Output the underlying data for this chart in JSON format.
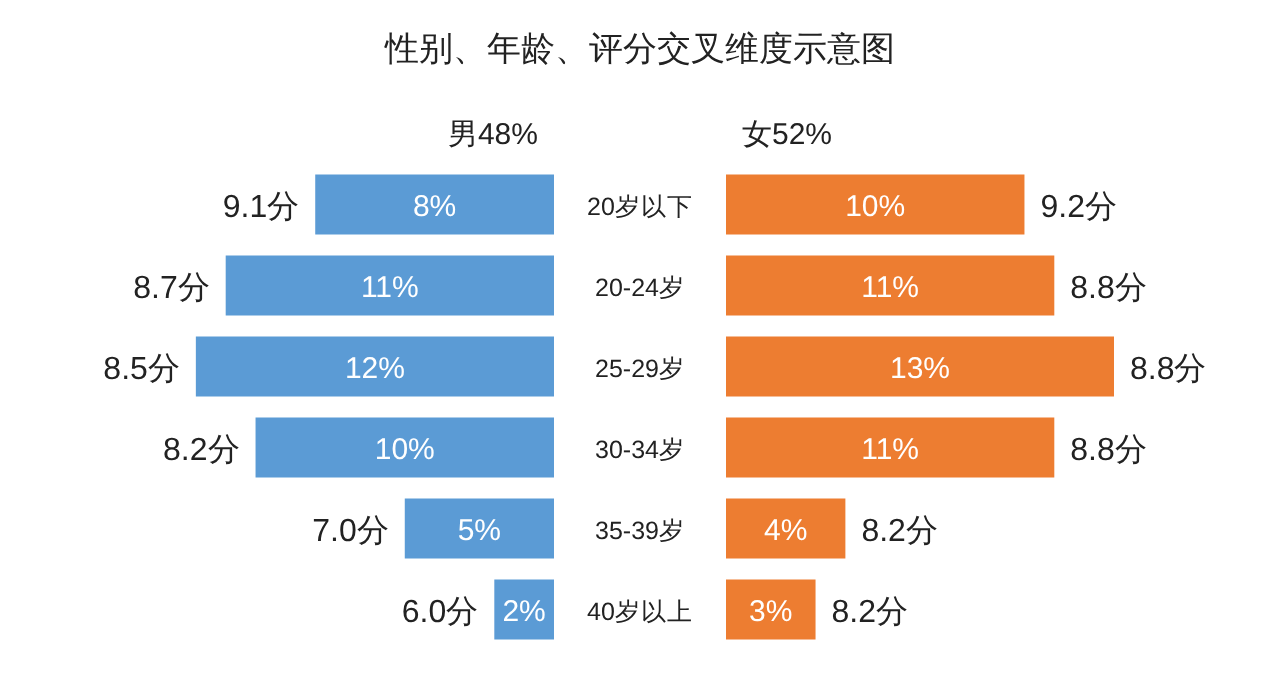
{
  "chart_data": [
    {
      "type": "bar",
      "orientation": "horizontal",
      "title": "性别、年龄、评分交叉维度示意图",
      "categories": [
        "20岁以下",
        "20-24岁",
        "25-29岁",
        "30-34岁",
        "35-39岁",
        "40岁以上"
      ],
      "tick_labels": false,
      "series": [
        {
          "name": "男48%",
          "color": "#5b9bd5",
          "values": [
            8,
            11,
            12,
            10,
            5,
            2
          ],
          "value_labels": [
            "8%",
            "11%",
            "12%",
            "10%",
            "5%",
            "2%"
          ]
        }
      ],
      "annotations": [
        {
          "text": "9.1分",
          "x": 8,
          "y": "20岁以下"
        },
        {
          "text": "8.7分",
          "x": 11,
          "y": "20-24岁"
        },
        {
          "text": "8.5分",
          "x": 12,
          "y": "25-29岁"
        },
        {
          "text": "8.2分",
          "x": 10,
          "y": "30-34岁"
        },
        {
          "text": "7.0分",
          "x": 5,
          "y": "35-39岁"
        },
        {
          "text": "6.0分",
          "x": 2,
          "y": "40岁以上"
        }
      ]
    },
    {
      "type": "bar",
      "orientation": "horizontal",
      "categories": [
        "20岁以下",
        "20-24岁",
        "25-29岁",
        "30-34岁",
        "35-39岁",
        "40岁以上"
      ],
      "series": [
        {
          "name": "女52%",
          "color": "#ed7d31",
          "values": [
            10,
            11,
            13,
            11,
            4,
            3
          ],
          "value_labels": [
            "10%",
            "11%",
            "13%",
            "11%",
            "4%",
            "3%"
          ]
        }
      ],
      "annotations": [
        {
          "text": "9.2分",
          "x": 10,
          "y": "20岁以下"
        },
        {
          "text": "8.8分",
          "x": 11,
          "y": "20-24岁"
        },
        {
          "text": "8.8分",
          "x": 13,
          "y": "25-29岁"
        },
        {
          "text": "8.8分",
          "x": 11,
          "y": "30-34岁"
        },
        {
          "text": "8.2分",
          "x": 4,
          "y": "35-39岁"
        },
        {
          "text": "8.2分",
          "x": 3,
          "y": "40岁以上"
        }
      ]
    }
  ]
}
